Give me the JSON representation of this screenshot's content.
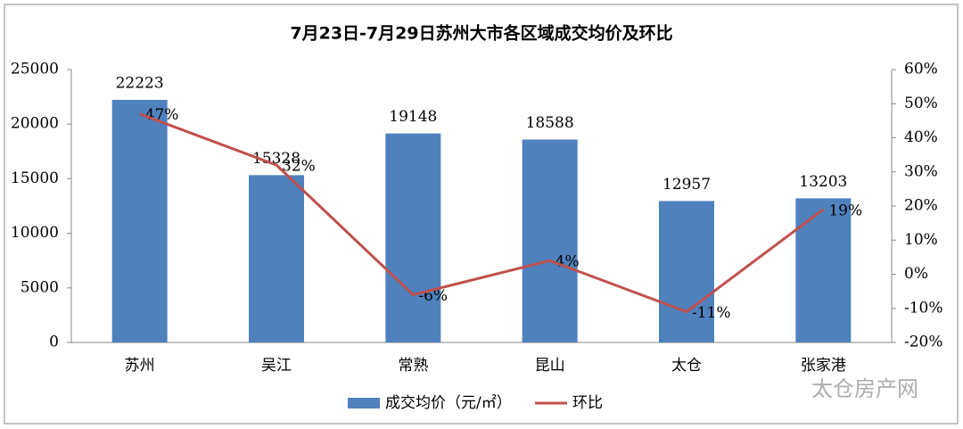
{
  "chart_data": {
    "type": "bar",
    "title": "7月23日-7月29日苏州大市各区域成交均价及环比",
    "categories": [
      "苏州",
      "吴江",
      "常熟",
      "昆山",
      "太仓",
      "张家港"
    ],
    "series": [
      {
        "name": "成交均价（元/㎡）",
        "type": "bar",
        "color": "#4f81bd",
        "values": [
          22223,
          15328,
          19148,
          18588,
          12957,
          13203
        ]
      },
      {
        "name": "环比",
        "type": "line",
        "axis": "y2",
        "color": "#c0504d",
        "values": [
          47,
          32,
          -6,
          4,
          -11,
          19
        ],
        "value_labels": [
          "47%",
          "32%",
          "-6%",
          "4%",
          "-11%",
          "19%"
        ]
      }
    ],
    "ylim": [
      0,
      25000
    ],
    "yticks": [
      0,
      5000,
      10000,
      15000,
      20000,
      25000
    ],
    "y2lim": [
      -20,
      60
    ],
    "y2ticks": [
      {
        "value": -20,
        "label": "-20%"
      },
      {
        "value": -10,
        "label": "-10%"
      },
      {
        "value": 0,
        "label": "0%"
      },
      {
        "value": 10,
        "label": "10%"
      },
      {
        "value": 20,
        "label": "20%"
      },
      {
        "value": 30,
        "label": "30%"
      },
      {
        "value": 40,
        "label": "40%"
      },
      {
        "value": 50,
        "label": "50%"
      },
      {
        "value": 60,
        "label": "60%"
      }
    ],
    "grid": false,
    "legend": "bottom",
    "watermark": "太仓房产网"
  }
}
